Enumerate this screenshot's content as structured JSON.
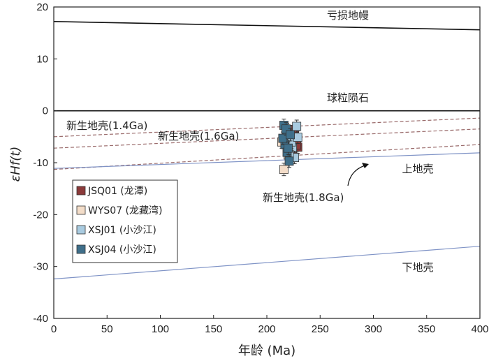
{
  "chart_data": {
    "type": "scatter",
    "xlabel": "年龄 (Ma)",
    "ylabel": "εHf(t)",
    "xlim": [
      0,
      400
    ],
    "ylim": [
      -40,
      20
    ],
    "xticks": [
      "0",
      "50",
      "100",
      "150",
      "200",
      "250",
      "300",
      "350",
      "400"
    ],
    "yticks": [
      "20",
      "10",
      "0",
      "-10",
      "-20",
      "-30",
      "-40"
    ],
    "grid": false,
    "legend_position": "lower-left",
    "reference_lines": [
      {
        "label": "亏损地幔",
        "style": "solid",
        "color": "#111111",
        "points": [
          [
            0,
            17.2
          ],
          [
            400,
            15.6
          ]
        ]
      },
      {
        "label": "球粒陨石",
        "style": "solid",
        "color": "#111111",
        "points": [
          [
            0,
            0
          ],
          [
            400,
            0
          ]
        ]
      },
      {
        "label": "新生地壳(1.4Ga)",
        "style": "dashed",
        "color": "#9a6b6b",
        "points": [
          [
            0,
            -5
          ],
          [
            400,
            -1.4
          ]
        ]
      },
      {
        "label": "新生地壳(1.6Ga)",
        "style": "dashed",
        "color": "#9a6b6b",
        "points": [
          [
            0,
            -7.2
          ],
          [
            400,
            -3.5
          ]
        ]
      },
      {
        "label": "新生地壳(1.8Ga)",
        "style": "dashed",
        "color": "#9a6b6b",
        "points": [
          [
            0,
            -11.3
          ],
          [
            400,
            -6.5
          ]
        ]
      },
      {
        "label": "上地壳",
        "style": "solid",
        "color": "#7f93c6",
        "points": [
          [
            0,
            -11.1
          ],
          [
            400,
            -8.1
          ]
        ]
      },
      {
        "label": "下地壳",
        "style": "solid",
        "color": "#7f93c6",
        "points": [
          [
            0,
            -32.4
          ],
          [
            400,
            -26.1
          ]
        ]
      }
    ],
    "series": [
      {
        "name": "JSQ01 (龙潭)",
        "color": "#8b3a3a",
        "points": [
          [
            223,
            -4.5
          ],
          [
            225,
            -6.2
          ],
          [
            227,
            -5.5
          ],
          [
            229,
            -7.0
          ],
          [
            226,
            -3.6
          ],
          [
            224,
            -8.0
          ],
          [
            228,
            -6.6
          ]
        ]
      },
      {
        "name": "WYS07 (龙藏湾)",
        "color": "#f3ddc9",
        "points": [
          [
            216,
            -11.3
          ],
          [
            218,
            -5.0
          ],
          [
            220,
            -8.5
          ],
          [
            214,
            -6.0
          ]
        ]
      },
      {
        "name": "XSJ01 (小沙江)",
        "color": "#a9cbe0",
        "points": [
          [
            219,
            -3.6
          ],
          [
            222,
            -4.9
          ],
          [
            224,
            -7.2
          ],
          [
            226,
            -9.0
          ],
          [
            228,
            -3.0
          ],
          [
            221,
            -8.4
          ],
          [
            223,
            -6.0
          ],
          [
            229,
            -5.1
          ]
        ]
      },
      {
        "name": "XSJ04 (小沙江)",
        "color": "#3f6f8a",
        "points": [
          [
            216,
            -2.8
          ],
          [
            218,
            -4.3
          ],
          [
            217,
            -6.5
          ],
          [
            219,
            -8.0
          ],
          [
            221,
            -9.7
          ],
          [
            215,
            -5.3
          ],
          [
            220,
            -7.2
          ],
          [
            218,
            -3.5
          ],
          [
            222,
            -4.6
          ]
        ]
      }
    ]
  }
}
